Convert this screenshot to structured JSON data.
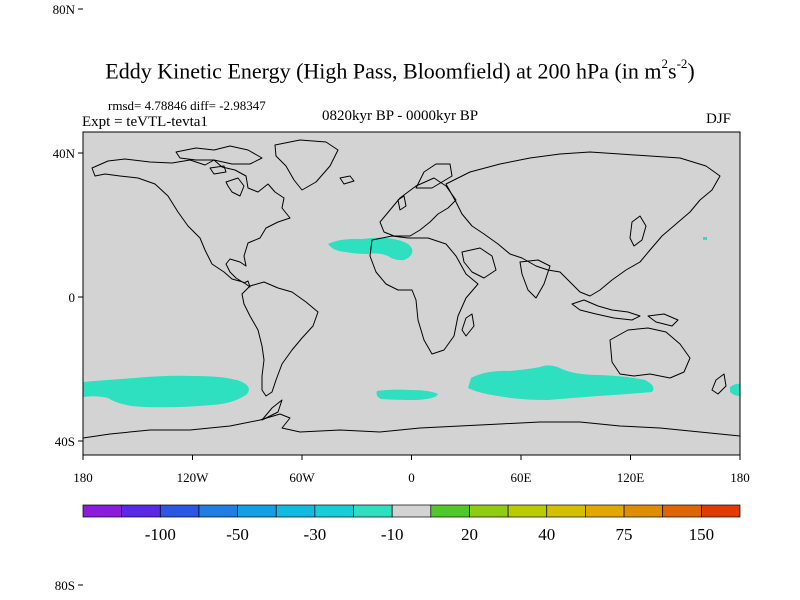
{
  "title": {
    "main": "Eddy Kinetic Energy (High Pass, Bloomfield) at 200 hPa (in m",
    "sup1": "2",
    "s": "s",
    "sup2": "-2",
    "close": ")"
  },
  "stats_text": "rmsd= 4.78846 diff= -2.98347",
  "experiment_text": "Expt = teVTL-tevta1",
  "period_text": "0820kyr BP - 0000kyr BP",
  "season_text": "DJF",
  "map": {
    "background_color": "#d3d3d3",
    "coastline_color": "#000000",
    "anomaly_fill_color": "#2ee0c0",
    "lat_tick_labels": [
      {
        "label": "80N",
        "lat": 80
      },
      {
        "label": "40N",
        "lat": 40
      },
      {
        "label": "0",
        "lat": 0
      },
      {
        "label": "40S",
        "lat": -40
      },
      {
        "label": "80S",
        "lat": -80
      }
    ],
    "lon_tick_labels": [
      {
        "label": "180",
        "lon": -180
      },
      {
        "label": "120W",
        "lon": -120
      },
      {
        "label": "60W",
        "lon": -60
      },
      {
        "label": "0",
        "lon": 0
      },
      {
        "label": "60E",
        "lon": 60
      },
      {
        "label": "120E",
        "lon": 120
      },
      {
        "label": "180",
        "lon": 180
      }
    ]
  },
  "colorbar": {
    "colors": [
      "#8a1ce0",
      "#5a28e6",
      "#2d55e6",
      "#1c7ee6",
      "#0fa0e8",
      "#10bbe0",
      "#14cfd8",
      "#2ee0c0",
      "#d3d3d3",
      "#50c828",
      "#90cc10",
      "#b8cc00",
      "#d4c000",
      "#e0a800",
      "#e08c00",
      "#e06400",
      "#e03c00"
    ],
    "labels": [
      {
        "text": "-100",
        "boundary": 2
      },
      {
        "text": "-50",
        "boundary": 4
      },
      {
        "text": "-30",
        "boundary": 6
      },
      {
        "text": "-10",
        "boundary": 8
      },
      {
        "text": "20",
        "boundary": 10
      },
      {
        "text": "40",
        "boundary": 12
      },
      {
        "text": "75",
        "boundary": 14
      },
      {
        "text": "150",
        "boundary": 16
      }
    ]
  }
}
